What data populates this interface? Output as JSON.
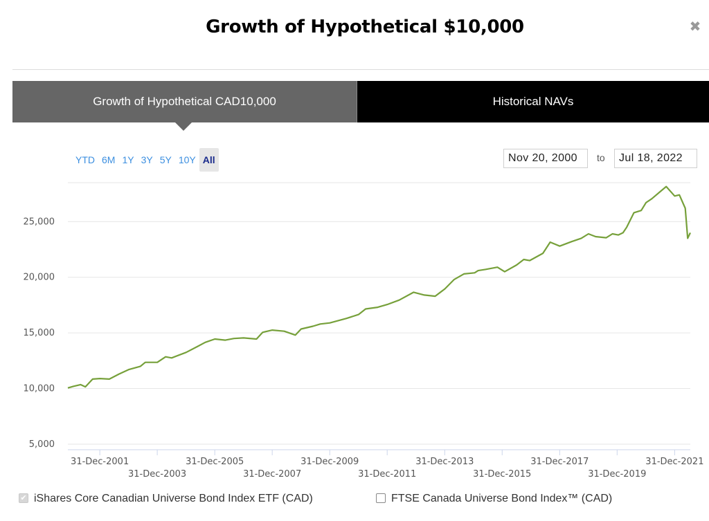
{
  "modal": {
    "title": "Growth of Hypothetical $10,000",
    "close_icon": "close-icon"
  },
  "tabs": [
    {
      "label": "Growth of Hypothetical CAD10,000",
      "active": true
    },
    {
      "label": "Historical NAVs",
      "active": false
    }
  ],
  "range_buttons": [
    "YTD",
    "6M",
    "1Y",
    "3Y",
    "5Y",
    "10Y",
    "All"
  ],
  "selected_range": "All",
  "date_range": {
    "from": "Nov 20, 2000",
    "separator": "to",
    "to": "Jul 18, 2022"
  },
  "legend": [
    {
      "label": "iShares Core Canadian Universe Bond Index ETF (CAD)",
      "checked": true
    },
    {
      "label": "FTSE Canada Universe Bond Index™ (CAD)",
      "checked": false
    }
  ],
  "colors": {
    "series_line": "#76a03a",
    "active_tab": "#666666",
    "inactive_tab": "#000000",
    "range_link": "#3c8fe0",
    "range_selected": "#1a2b8c"
  },
  "chart_data": {
    "type": "line",
    "title": "",
    "xlabel": "",
    "ylabel": "",
    "ylim": [
      4500,
      28500
    ],
    "xlim": [
      "2000-11-20",
      "2022-07-18"
    ],
    "y_ticks": [
      5000,
      10000,
      15000,
      20000,
      25000
    ],
    "y_tick_labels": [
      "5,000",
      "10,000",
      "15,000",
      "20,000",
      "25,000"
    ],
    "x_ticks": [
      "2001-12-31",
      "2003-12-31",
      "2005-12-31",
      "2007-12-31",
      "2009-12-31",
      "2011-12-31",
      "2013-12-31",
      "2015-12-31",
      "2017-12-31",
      "2019-12-31",
      "2021-12-31"
    ],
    "x_tick_labels": [
      "31-Dec-2001",
      "31-Dec-2003",
      "31-Dec-2005",
      "31-Dec-2007",
      "31-Dec-2009",
      "31-Dec-2011",
      "31-Dec-2013",
      "31-Dec-2015",
      "31-Dec-2017",
      "31-Dec-2019",
      "31-Dec-2021"
    ],
    "grid": true,
    "series": [
      {
        "name": "iShares Core Canadian Universe Bond Index ETF (CAD)",
        "x": [
          "2000-11-20",
          "2001-02-01",
          "2001-05-01",
          "2001-07-01",
          "2001-10-01",
          "2002-01-01",
          "2002-05-01",
          "2002-09-01",
          "2003-01-01",
          "2003-06-01",
          "2003-08-01",
          "2004-01-01",
          "2004-04-15",
          "2004-07-01",
          "2005-01-01",
          "2005-06-01",
          "2005-09-01",
          "2006-01-01",
          "2006-05-15",
          "2006-09-01",
          "2007-01-01",
          "2007-06-15",
          "2007-09-01",
          "2008-01-01",
          "2008-06-01",
          "2008-10-20",
          "2009-01-01",
          "2009-06-01",
          "2009-09-01",
          "2010-01-01",
          "2010-08-01",
          "2011-01-01",
          "2011-04-01",
          "2011-09-01",
          "2012-01-01",
          "2012-06-01",
          "2012-12-01",
          "2013-04-15",
          "2013-09-01",
          "2014-01-01",
          "2014-05-01",
          "2014-09-01",
          "2015-01-15",
          "2015-03-01",
          "2015-06-01",
          "2015-11-01",
          "2016-02-01",
          "2016-07-01",
          "2016-10-01",
          "2016-12-15",
          "2017-06-01",
          "2017-09-01",
          "2018-01-01",
          "2018-06-01",
          "2018-10-01",
          "2019-01-01",
          "2019-04-01",
          "2019-08-15",
          "2019-11-01",
          "2020-01-15",
          "2020-03-15",
          "2020-05-01",
          "2020-08-01",
          "2020-11-01",
          "2021-01-01",
          "2021-03-15",
          "2021-07-01",
          "2021-09-15",
          "2021-12-31",
          "2022-03-01",
          "2022-05-15",
          "2022-06-15",
          "2022-07-18"
        ],
        "y": [
          10050,
          10200,
          10350,
          10150,
          10850,
          10900,
          10850,
          11300,
          11700,
          12000,
          12350,
          12350,
          12850,
          12750,
          13250,
          13800,
          14150,
          14450,
          14350,
          14500,
          14550,
          14450,
          15050,
          15250,
          15150,
          14800,
          15350,
          15600,
          15800,
          15900,
          16300,
          16650,
          17150,
          17300,
          17550,
          17950,
          18650,
          18400,
          18300,
          18950,
          19800,
          20300,
          20400,
          20600,
          20700,
          20900,
          20500,
          21100,
          21600,
          21500,
          22150,
          23150,
          22800,
          23200,
          23500,
          23900,
          23650,
          23550,
          23900,
          23800,
          24000,
          24500,
          25800,
          26000,
          26700,
          27050,
          27700,
          28150,
          27300,
          27400,
          26200,
          23500,
          24000
        ]
      }
    ]
  }
}
